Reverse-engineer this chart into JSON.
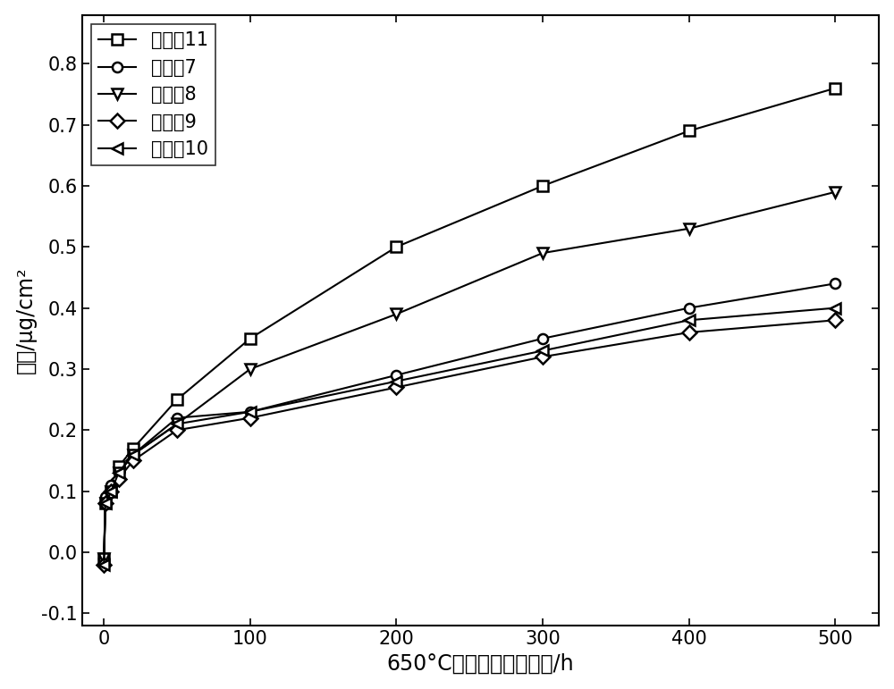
{
  "title": "",
  "xlabel": "650°C条件下的氧化时间/h",
  "ylabel": "增重/μg/cm²",
  "xlim": [
    -15,
    530
  ],
  "ylim": [
    -0.12,
    0.88
  ],
  "xticks": [
    0,
    100,
    200,
    300,
    400,
    500
  ],
  "yticks": [
    -0.1,
    0.0,
    0.1,
    0.2,
    0.3,
    0.4,
    0.5,
    0.6,
    0.7,
    0.8
  ],
  "series": [
    {
      "label": "实施例11",
      "marker": "s",
      "x": [
        0,
        1,
        5,
        10,
        20,
        50,
        100,
        200,
        300,
        400,
        500
      ],
      "y": [
        -0.01,
        0.08,
        0.1,
        0.14,
        0.17,
        0.25,
        0.35,
        0.5,
        0.6,
        0.69,
        0.76
      ]
    },
    {
      "label": "实施例7",
      "marker": "o",
      "x": [
        0,
        1,
        5,
        10,
        20,
        50,
        100,
        200,
        300,
        400,
        500
      ],
      "y": [
        -0.01,
        0.09,
        0.11,
        0.13,
        0.16,
        0.22,
        0.23,
        0.29,
        0.35,
        0.4,
        0.44
      ]
    },
    {
      "label": "实施例8",
      "marker": "v",
      "x": [
        0,
        1,
        5,
        10,
        20,
        50,
        100,
        200,
        300,
        400,
        500
      ],
      "y": [
        -0.01,
        0.08,
        0.1,
        0.13,
        0.16,
        0.21,
        0.3,
        0.39,
        0.49,
        0.53,
        0.59
      ]
    },
    {
      "label": "实施例9",
      "marker": "D",
      "x": [
        0,
        1,
        5,
        10,
        20,
        50,
        100,
        200,
        300,
        400,
        500
      ],
      "y": [
        -0.02,
        0.08,
        0.1,
        0.12,
        0.15,
        0.2,
        0.22,
        0.27,
        0.32,
        0.36,
        0.38
      ]
    },
    {
      "label": "实施例10",
      "marker": "<",
      "x": [
        0,
        1,
        5,
        10,
        20,
        50,
        100,
        200,
        300,
        400,
        500
      ],
      "y": [
        -0.02,
        0.08,
        0.1,
        0.13,
        0.16,
        0.21,
        0.23,
        0.28,
        0.33,
        0.38,
        0.4
      ]
    }
  ],
  "line_color": "black",
  "marker_size": 8,
  "line_width": 1.5,
  "font_size_axis_label": 17,
  "font_size_tick": 15,
  "font_size_legend": 15,
  "legend_loc": "upper left"
}
